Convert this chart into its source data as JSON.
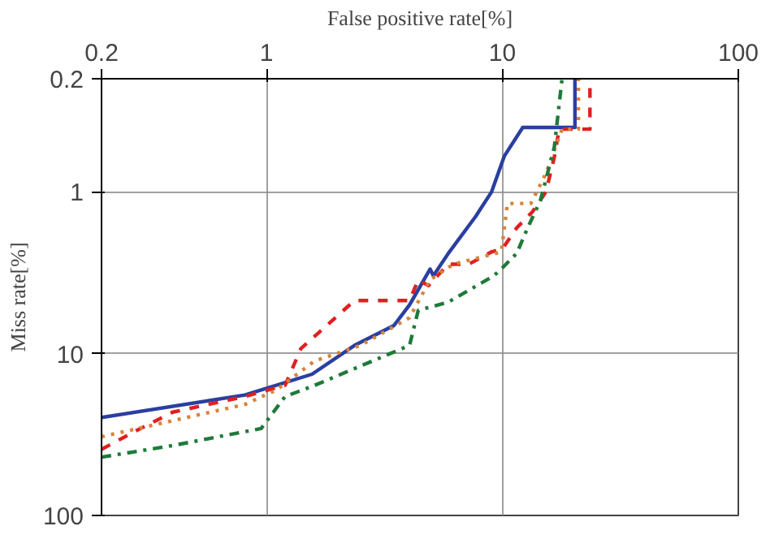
{
  "chart_data": {
    "type": "line",
    "xlabel": "False positive rate[%]",
    "ylabel": "Miss rate[%]",
    "log": "xy",
    "xlim": [
      0.2,
      100
    ],
    "ylim": [
      100,
      0.2
    ],
    "xticks": [
      0.2,
      1,
      10,
      100
    ],
    "yticks": [
      0.2,
      1,
      10,
      100
    ],
    "grid": true,
    "series": [
      {
        "color": "#2a3fa0",
        "line_style": "solid",
        "x": [
          0.2,
          0.81,
          1.56,
          2.36,
          3.47,
          4.04,
          4.94,
          5.1,
          5.9,
          7.7,
          9.0,
          10.2,
          12.2,
          20.3,
          20.3
        ],
        "values": [
          24.8,
          18,
          13.4,
          8.9,
          6.7,
          5.0,
          3.0,
          3.3,
          2.4,
          1.42,
          1.0,
          0.6,
          0.4,
          0.4,
          0.2
        ]
      },
      {
        "color": "#e02020",
        "line_style": "dashed",
        "x": [
          0.2,
          0.28,
          0.4,
          0.81,
          1.2,
          1.4,
          2.36,
          4.04,
          4.4,
          4.86,
          5.9,
          7.2,
          9.0,
          10,
          11.5,
          13.4,
          15.3,
          16.6,
          17.4,
          23.5,
          23.5
        ],
        "values": [
          39,
          30,
          23,
          18.4,
          15.7,
          9.3,
          4.7,
          4.7,
          3.5,
          3.8,
          2.8,
          2.8,
          2.35,
          2.25,
          1.67,
          1.33,
          1.0,
          0.61,
          0.41,
          0.41,
          0.2
        ]
      },
      {
        "color": "#d9823a",
        "line_style": "dotted",
        "x": [
          0.2,
          0.81,
          1.1,
          1.6,
          2.5,
          4.04,
          4.94,
          6.2,
          9.9,
          10.5,
          13.2,
          15.3,
          17.9,
          21,
          21
        ],
        "values": [
          32.6,
          20.6,
          16.8,
          11.1,
          8.9,
          6.0,
          3.5,
          2.8,
          2.35,
          1.18,
          1.18,
          0.77,
          0.41,
          0.41,
          0.2
        ]
      },
      {
        "color": "#1f7a3a",
        "line_style": "dashdot",
        "x": [
          0.2,
          0.4,
          0.95,
          1.2,
          1.6,
          4.04,
          4.4,
          5.9,
          9.2,
          10,
          11.5,
          12.8,
          14.5,
          16.6,
          17.9
        ],
        "values": [
          43.6,
          37,
          29,
          18.4,
          15.7,
          8.9,
          5.4,
          4.8,
          3.3,
          2.95,
          2.4,
          1.67,
          1.13,
          0.53,
          0.2
        ]
      }
    ]
  }
}
